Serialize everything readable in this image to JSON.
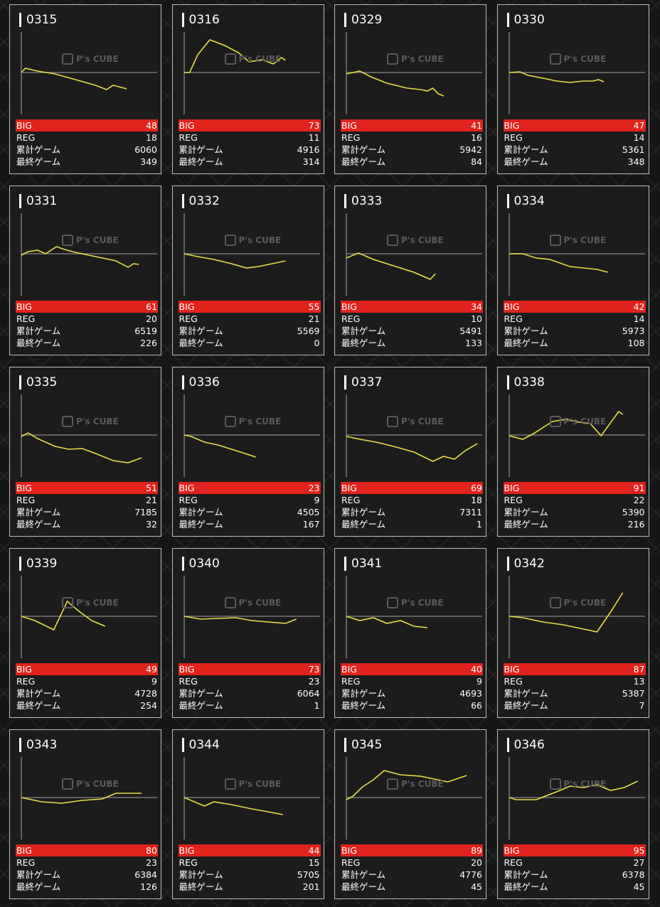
{
  "colors": {
    "line": "#e9df4a",
    "big": "#e0231c",
    "baseline": "#777777",
    "axis": "#aaaaaa"
  },
  "watermark": {
    "logo_text": "P's CUBE"
  },
  "labels": {
    "big": "BIG",
    "reg": "REG",
    "total_games": "累計ゲーム",
    "last_games": "最終ゲーム"
  },
  "machines": [
    {
      "id": "0315",
      "big": "48",
      "reg": "18",
      "total": "6060",
      "last": "349",
      "line": [
        [
          0,
          0
        ],
        [
          3,
          6
        ],
        [
          12,
          2
        ],
        [
          25,
          -2
        ],
        [
          40,
          -10
        ],
        [
          55,
          -18
        ],
        [
          63,
          -24
        ],
        [
          68,
          -18
        ],
        [
          72,
          -20
        ],
        [
          78,
          -23
        ]
      ]
    },
    {
      "id": "0316",
      "big": "73",
      "reg": "11",
      "total": "4916",
      "last": "314",
      "line": [
        [
          0,
          0
        ],
        [
          4,
          0
        ],
        [
          10,
          25
        ],
        [
          19,
          46
        ],
        [
          30,
          38
        ],
        [
          40,
          28
        ],
        [
          48,
          15
        ],
        [
          58,
          18
        ],
        [
          66,
          12
        ],
        [
          72,
          21
        ],
        [
          75,
          17
        ]
      ]
    },
    {
      "id": "0329",
      "big": "41",
      "reg": "16",
      "total": "5942",
      "last": "84",
      "line": [
        [
          0,
          -2
        ],
        [
          5,
          0
        ],
        [
          10,
          2
        ],
        [
          18,
          -6
        ],
        [
          30,
          -15
        ],
        [
          45,
          -22
        ],
        [
          55,
          -24
        ],
        [
          60,
          -26
        ],
        [
          64,
          -22
        ],
        [
          68,
          -30
        ],
        [
          72,
          -33
        ]
      ]
    },
    {
      "id": "0330",
      "big": "47",
      "reg": "14",
      "total": "5361",
      "last": "348",
      "line": [
        [
          0,
          0
        ],
        [
          8,
          1
        ],
        [
          14,
          -4
        ],
        [
          25,
          -8
        ],
        [
          35,
          -12
        ],
        [
          45,
          -14
        ],
        [
          55,
          -12
        ],
        [
          62,
          -12
        ],
        [
          66,
          -10
        ],
        [
          70,
          -13
        ]
      ]
    },
    {
      "id": "0331",
      "big": "61",
      "reg": "20",
      "total": "6519",
      "last": "226",
      "line": [
        [
          0,
          -2
        ],
        [
          5,
          3
        ],
        [
          12,
          5
        ],
        [
          18,
          0
        ],
        [
          26,
          10
        ],
        [
          32,
          6
        ],
        [
          40,
          2
        ],
        [
          50,
          -2
        ],
        [
          60,
          -6
        ],
        [
          70,
          -10
        ],
        [
          79,
          -19
        ],
        [
          83,
          -14
        ],
        [
          87,
          -15
        ]
      ]
    },
    {
      "id": "0332",
      "big": "55",
      "reg": "21",
      "total": "5569",
      "last": "0",
      "line": [
        [
          0,
          0
        ],
        [
          10,
          -4
        ],
        [
          22,
          -8
        ],
        [
          35,
          -14
        ],
        [
          46,
          -20
        ],
        [
          55,
          -18
        ],
        [
          65,
          -14
        ],
        [
          75,
          -10
        ]
      ]
    },
    {
      "id": "0333",
      "big": "34",
      "reg": "10",
      "total": "5491",
      "last": "133",
      "line": [
        [
          0,
          -6
        ],
        [
          5,
          -2
        ],
        [
          9,
          1
        ],
        [
          20,
          -8
        ],
        [
          35,
          -17
        ],
        [
          50,
          -26
        ],
        [
          62,
          -36
        ],
        [
          66,
          -28
        ]
      ]
    },
    {
      "id": "0334",
      "big": "42",
      "reg": "14",
      "total": "5973",
      "last": "108",
      "line": [
        [
          0,
          0
        ],
        [
          10,
          0
        ],
        [
          20,
          -6
        ],
        [
          30,
          -8
        ],
        [
          45,
          -18
        ],
        [
          55,
          -20
        ],
        [
          65,
          -22
        ],
        [
          73,
          -26
        ]
      ]
    },
    {
      "id": "0335",
      "big": "51",
      "reg": "21",
      "total": "7185",
      "last": "32",
      "line": [
        [
          0,
          -2
        ],
        [
          5,
          3
        ],
        [
          12,
          -5
        ],
        [
          25,
          -16
        ],
        [
          35,
          -20
        ],
        [
          45,
          -19
        ],
        [
          55,
          -26
        ],
        [
          68,
          -36
        ],
        [
          79,
          -39
        ],
        [
          89,
          -32
        ]
      ]
    },
    {
      "id": "0336",
      "big": "23",
      "reg": "9",
      "total": "4505",
      "last": "167",
      "line": [
        [
          0,
          0
        ],
        [
          5,
          -2
        ],
        [
          15,
          -10
        ],
        [
          25,
          -14
        ],
        [
          35,
          -20
        ],
        [
          45,
          -26
        ],
        [
          53,
          -31
        ]
      ]
    },
    {
      "id": "0337",
      "big": "69",
      "reg": "18",
      "total": "7311",
      "last": "1",
      "line": [
        [
          0,
          -2
        ],
        [
          10,
          -6
        ],
        [
          22,
          -10
        ],
        [
          35,
          -16
        ],
        [
          50,
          -24
        ],
        [
          64,
          -37
        ],
        [
          72,
          -30
        ],
        [
          80,
          -34
        ],
        [
          88,
          -22
        ],
        [
          97,
          -12
        ]
      ]
    },
    {
      "id": "0338",
      "big": "91",
      "reg": "22",
      "total": "5390",
      "last": "216",
      "line": [
        [
          0,
          -1
        ],
        [
          10,
          -6
        ],
        [
          18,
          2
        ],
        [
          32,
          19
        ],
        [
          42,
          22
        ],
        [
          52,
          18
        ],
        [
          60,
          16
        ],
        [
          68,
          -1
        ],
        [
          81,
          33
        ],
        [
          84,
          29
        ]
      ]
    },
    {
      "id": "0339",
      "big": "49",
      "reg": "9",
      "total": "4728",
      "last": "254",
      "line": [
        [
          0,
          0
        ],
        [
          10,
          -6
        ],
        [
          24,
          -19
        ],
        [
          34,
          21
        ],
        [
          42,
          8
        ],
        [
          52,
          -6
        ],
        [
          62,
          -14
        ]
      ]
    },
    {
      "id": "0340",
      "big": "73",
      "reg": "23",
      "total": "6064",
      "last": "1",
      "line": [
        [
          0,
          0
        ],
        [
          12,
          -4
        ],
        [
          25,
          -3
        ],
        [
          38,
          -2
        ],
        [
          50,
          -6
        ],
        [
          62,
          -8
        ],
        [
          75,
          -10
        ],
        [
          83,
          -4
        ]
      ]
    },
    {
      "id": "0341",
      "big": "40",
      "reg": "9",
      "total": "4693",
      "last": "66",
      "line": [
        [
          0,
          0
        ],
        [
          10,
          -6
        ],
        [
          20,
          -2
        ],
        [
          30,
          -10
        ],
        [
          40,
          -6
        ],
        [
          50,
          -14
        ],
        [
          60,
          -16
        ]
      ]
    },
    {
      "id": "0342",
      "big": "87",
      "reg": "13",
      "total": "5387",
      "last": "7",
      "line": [
        [
          0,
          0
        ],
        [
          10,
          -2
        ],
        [
          25,
          -8
        ],
        [
          40,
          -12
        ],
        [
          55,
          -18
        ],
        [
          65,
          -22
        ],
        [
          75,
          6
        ],
        [
          84,
          33
        ]
      ]
    },
    {
      "id": "0343",
      "big": "80",
      "reg": "23",
      "total": "6384",
      "last": "126",
      "line": [
        [
          0,
          0
        ],
        [
          15,
          -6
        ],
        [
          30,
          -8
        ],
        [
          45,
          -4
        ],
        [
          60,
          -2
        ],
        [
          70,
          6
        ],
        [
          89,
          6
        ]
      ]
    },
    {
      "id": "0344",
      "big": "44",
      "reg": "15",
      "total": "5705",
      "last": "201",
      "line": [
        [
          0,
          0
        ],
        [
          15,
          -12
        ],
        [
          22,
          -6
        ],
        [
          35,
          -10
        ],
        [
          50,
          -16
        ],
        [
          62,
          -20
        ],
        [
          73,
          -24
        ]
      ]
    },
    {
      "id": "0345",
      "big": "89",
      "reg": "20",
      "total": "4776",
      "last": "45",
      "line": [
        [
          0,
          -3
        ],
        [
          5,
          2
        ],
        [
          12,
          15
        ],
        [
          20,
          25
        ],
        [
          28,
          38
        ],
        [
          40,
          32
        ],
        [
          55,
          30
        ],
        [
          65,
          26
        ],
        [
          75,
          22
        ],
        [
          89,
          31
        ]
      ]
    },
    {
      "id": "0346",
      "big": "95",
      "reg": "27",
      "total": "6378",
      "last": "45",
      "line": [
        [
          0,
          0
        ],
        [
          5,
          -3
        ],
        [
          20,
          -3
        ],
        [
          35,
          8
        ],
        [
          45,
          16
        ],
        [
          55,
          14
        ],
        [
          65,
          18
        ],
        [
          75,
          10
        ],
        [
          85,
          14
        ],
        [
          95,
          23
        ]
      ]
    }
  ]
}
